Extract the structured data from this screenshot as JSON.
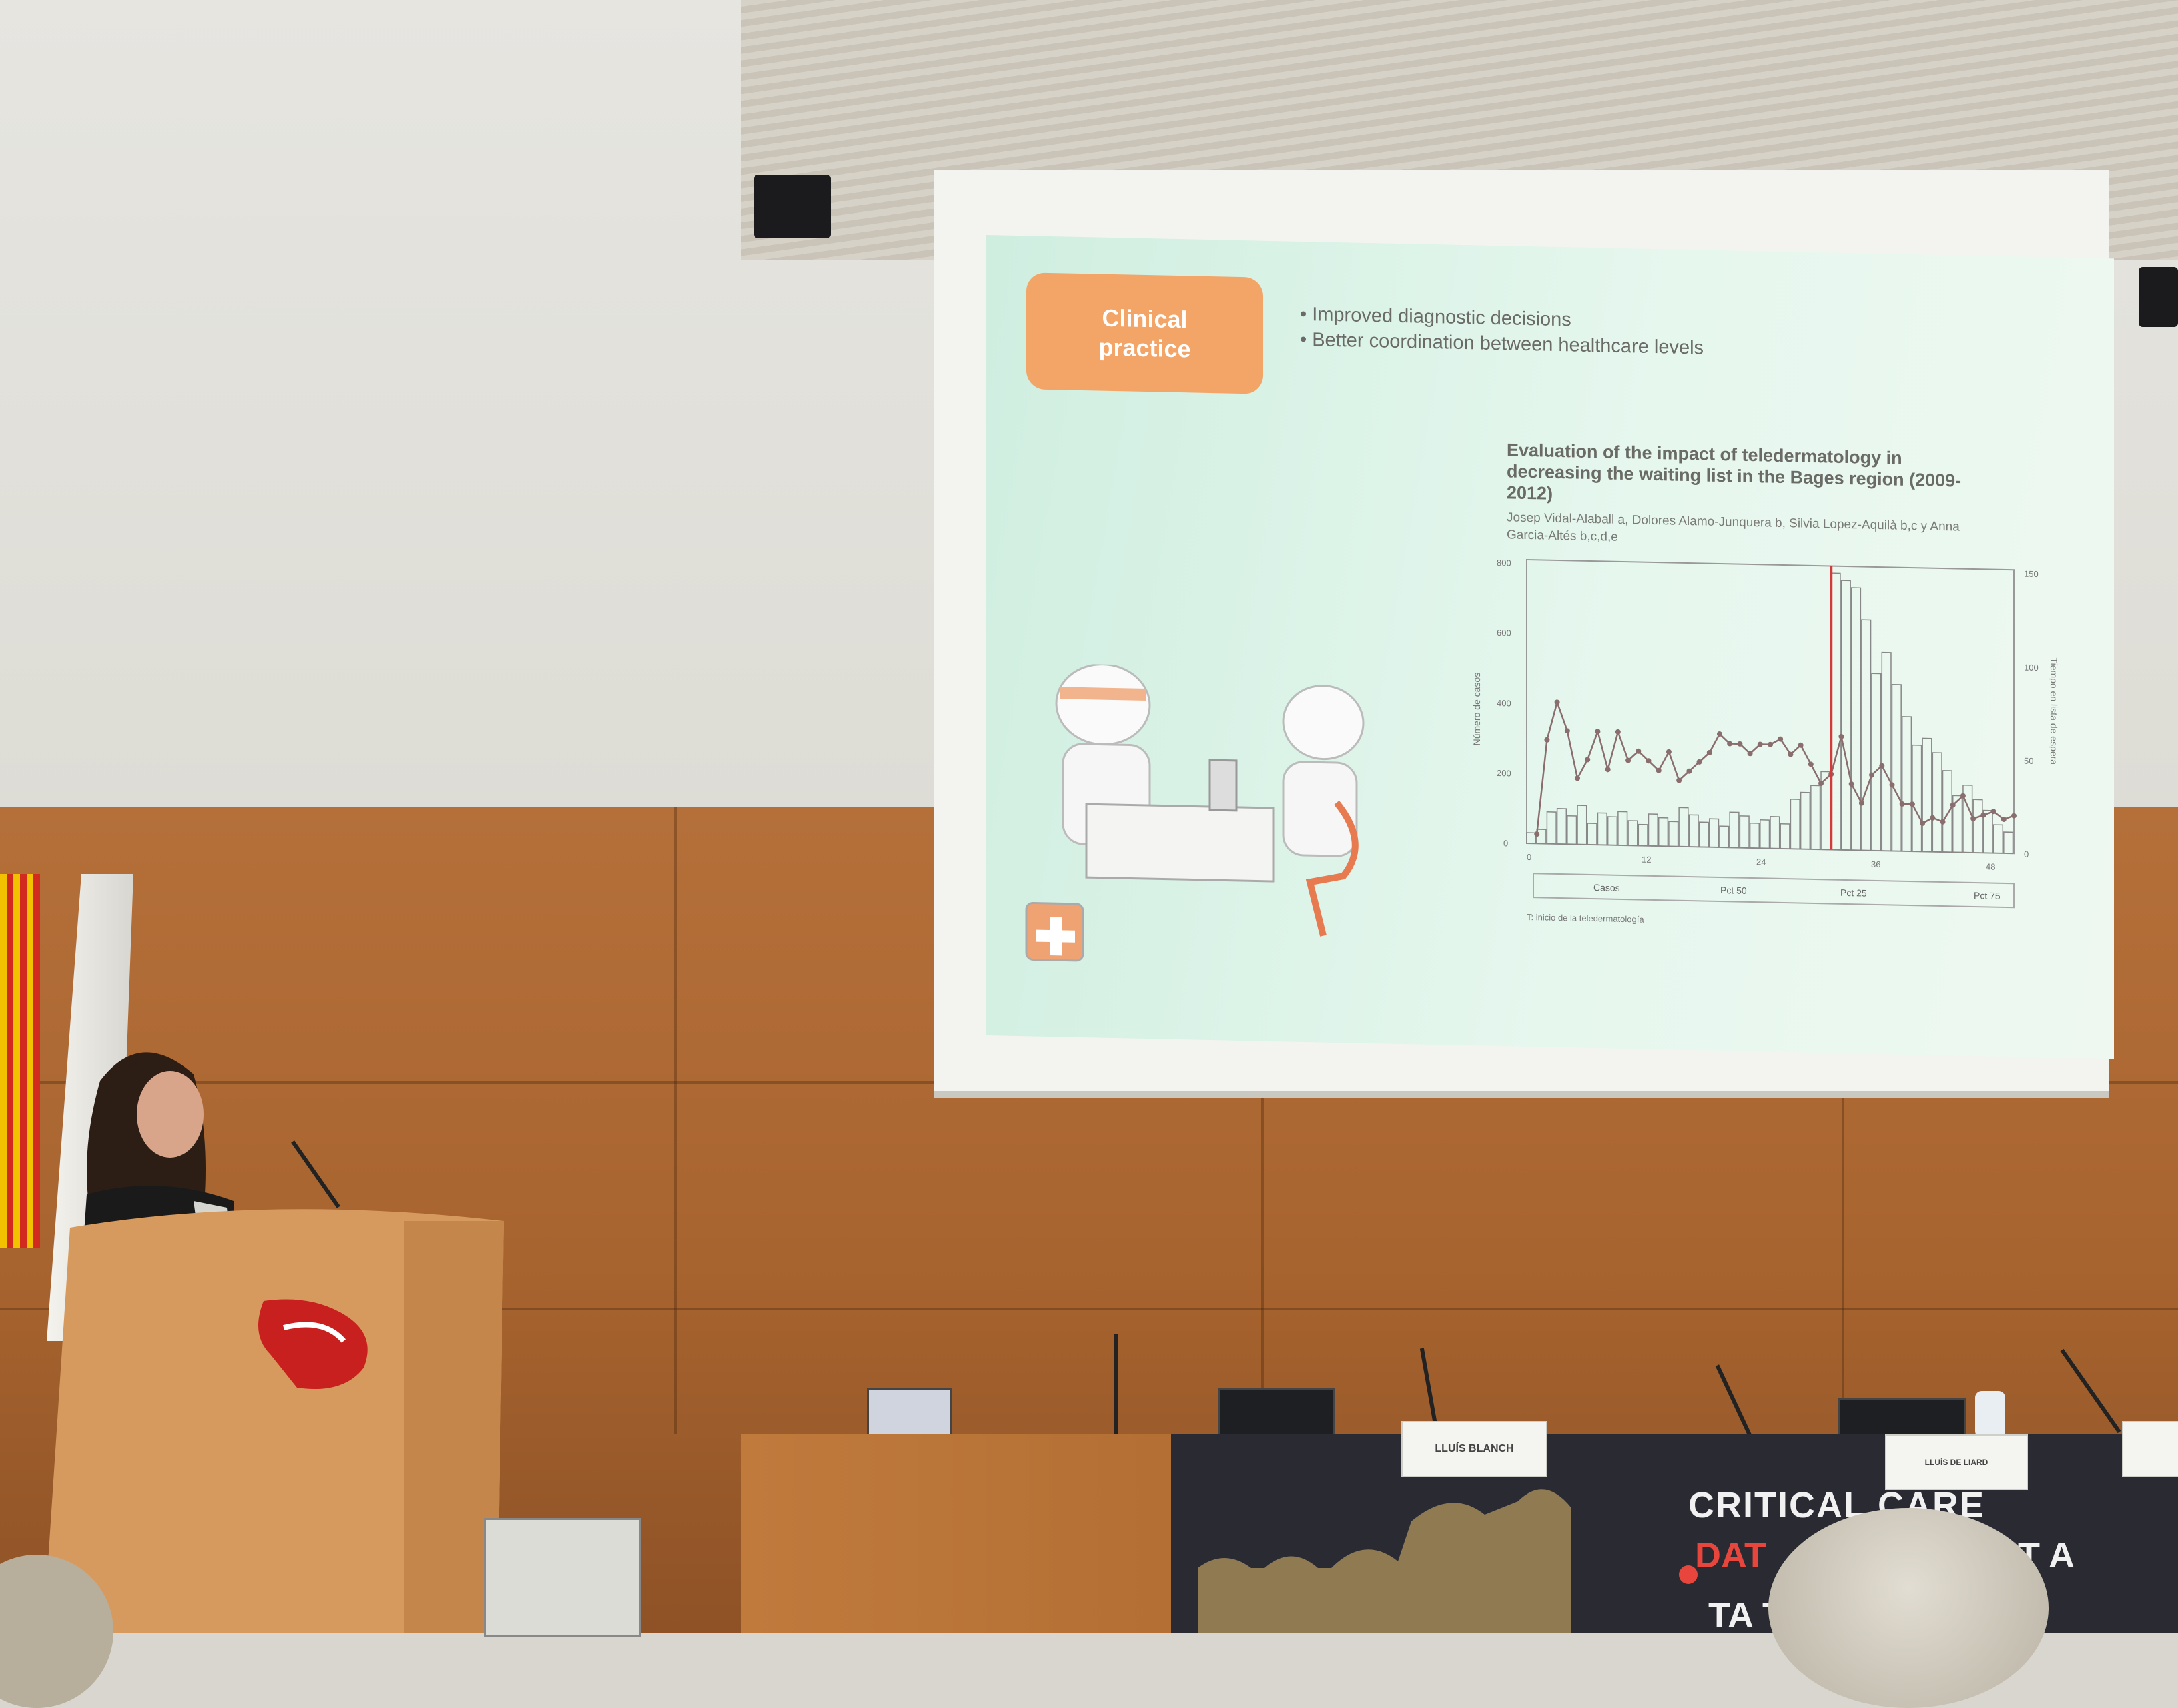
{
  "slide": {
    "badge_line1": "Clinical",
    "badge_line2": "practice",
    "bullets": [
      "Improved diagnostic decisions",
      "Better coordination between healthcare levels"
    ],
    "paper_title": "Evaluation of the impact of teledermatology in decreasing the waiting list in the Bages region (2009-2012)",
    "paper_authors": "Josep Vidal-Alaball a, Dolores Alamo-Junquera b, Silvia Lopez-Aquilà b,c y Anna Garcia-Altés b,c,d,e",
    "chart": {
      "y_left_label": "Número de casos",
      "y_right_label": "Tiempo en lista de espera",
      "y_left_ticks": [
        "0",
        "200",
        "400",
        "600",
        "800"
      ],
      "y_right_ticks": [
        "0",
        "50",
        "100",
        "150"
      ],
      "x_ticks": [
        "0",
        "12",
        "24",
        "36",
        "48"
      ],
      "legend": [
        "Casos",
        "Pct 50",
        "Pct 25",
        "Pct 75"
      ],
      "footnote": "T: inicio de la teledermatología"
    }
  },
  "chart_data": {
    "type": "bar",
    "x": [
      1,
      2,
      3,
      4,
      5,
      6,
      7,
      8,
      9,
      10,
      11,
      12,
      13,
      14,
      15,
      16,
      17,
      18,
      19,
      20,
      21,
      22,
      23,
      24,
      25,
      26,
      27,
      28,
      29,
      30,
      31,
      32,
      33,
      34,
      35,
      36,
      37,
      38,
      39,
      40,
      41,
      42,
      43,
      44,
      45,
      46,
      47,
      48
    ],
    "series": [
      {
        "name": "Casos",
        "values": [
          30,
          40,
          90,
          100,
          80,
          110,
          60,
          90,
          80,
          95,
          70,
          60,
          90,
          80,
          70,
          110,
          90,
          70,
          80,
          60,
          100,
          90,
          70,
          80,
          90,
          70,
          140,
          160,
          180,
          220,
          780,
          760,
          740,
          650,
          500,
          560,
          470,
          380,
          300,
          320,
          280,
          230,
          160,
          190,
          150,
          120,
          80,
          60
        ]
      },
      {
        "name": "Pct 50",
        "values": [
          5,
          55,
          75,
          60,
          35,
          45,
          60,
          40,
          60,
          45,
          50,
          45,
          40,
          50,
          35,
          40,
          45,
          50,
          60,
          55,
          55,
          50,
          55,
          55,
          58,
          50,
          55,
          45,
          35,
          40,
          60,
          35,
          25,
          40,
          45,
          35,
          25,
          25,
          15,
          18,
          16,
          25,
          30,
          18,
          20,
          22,
          18,
          20
        ]
      }
    ],
    "y_left_range": [
      0,
      800
    ],
    "y_right_range": [
      0,
      150
    ],
    "x_range": [
      0,
      48
    ],
    "annotation_x": 30
  },
  "banner": {
    "line1": "CRITICAL CARE",
    "line2a": "DAT",
    "line2b": "UMMIT A",
    "line3": "TA          THON"
  },
  "nameplates": [
    "LLUÍS BLANCH",
    "LLUÍS DE LIARD"
  ]
}
